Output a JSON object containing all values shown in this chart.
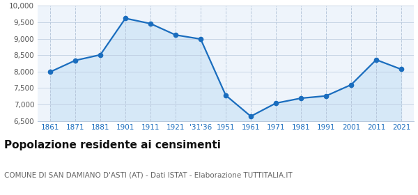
{
  "population": [
    7990,
    8340,
    8510,
    9620,
    9460,
    9115,
    8990,
    7280,
    6640,
    7040,
    7190,
    7260,
    7600,
    8360,
    8070
  ],
  "xtick_labels": [
    "1861",
    "1871",
    "1881",
    "1901",
    "1911",
    "1921",
    "'31'36",
    "1951",
    "1961",
    "1971",
    "1981",
    "1991",
    "2001",
    "2011",
    "2021"
  ],
  "ytick_positions": [
    6500,
    7000,
    7500,
    8000,
    8500,
    9000,
    9500,
    10000
  ],
  "ytick_labels": [
    "6,500",
    "7,000",
    "7,500",
    "8,000",
    "8,500",
    "9,000",
    "9,500",
    "10,000"
  ],
  "ylim": [
    6500,
    10000
  ],
  "title": "Popolazione residente ai censimenti",
  "subtitle": "COMUNE DI SAN DAMIANO D'ASTI (AT) - Dati ISTAT - Elaborazione TUTTITALIA.IT",
  "line_color": "#1a6dbe",
  "fill_color": "#d6e8f7",
  "marker_color": "#1a6dbe",
  "bg_color": "#eef4fb",
  "grid_color": "#b8c8dc",
  "title_fontsize": 11,
  "subtitle_fontsize": 7.5,
  "tick_fontsize": 7.5
}
